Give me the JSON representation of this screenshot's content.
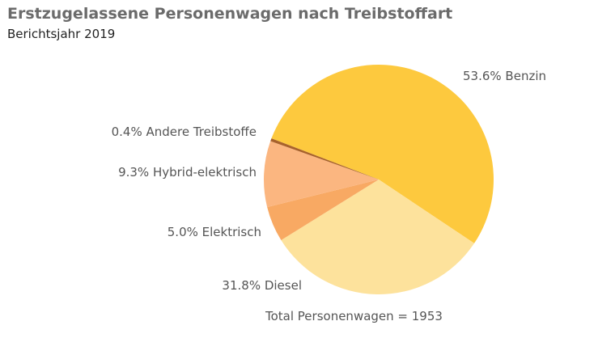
{
  "chart_data": {
    "type": "pie",
    "title": "Erstzugelassene Personenwagen nach Treibstoffart",
    "subtitle": "Berichtsjahr 2019",
    "footnote": "Total Personenwagen = 1953",
    "slices": [
      {
        "name": "Benzin",
        "value": 53.6,
        "label": "53.6% Benzin",
        "color": "#fdc93e"
      },
      {
        "name": "Diesel",
        "value": 31.8,
        "label": "31.8% Diesel",
        "color": "#fde29c"
      },
      {
        "name": "Elektrisch",
        "value": 5.0,
        "label": "5.0% Elektrisch",
        "color": "#f8a963"
      },
      {
        "name": "Hybrid-elektrisch",
        "value": 9.3,
        "label": "9.3% Hybrid-elektrisch",
        "color": "#fbb680"
      },
      {
        "name": "Andere Treibstoffe",
        "value": 0.4,
        "label": "0.4% Andere Treibstoffe",
        "color": "#a8622b"
      }
    ]
  }
}
